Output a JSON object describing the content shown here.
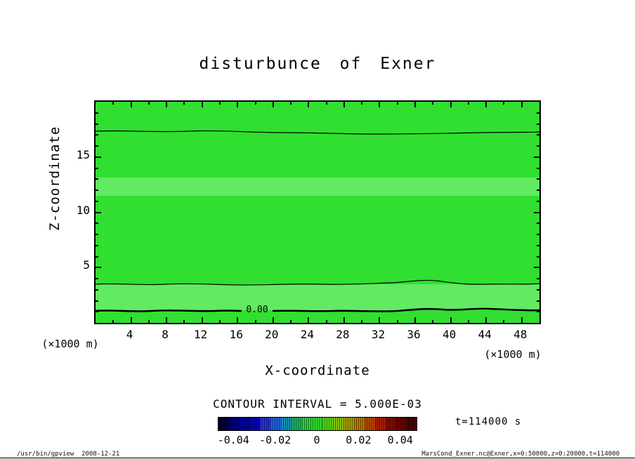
{
  "title": "disturbunce of Exner",
  "axes": {
    "x": {
      "label": "X-coordinate",
      "unit": "(×1000 m)",
      "range": [
        0,
        50
      ],
      "ticks": [
        4,
        8,
        12,
        16,
        20,
        24,
        28,
        32,
        36,
        40,
        44,
        48
      ]
    },
    "y": {
      "label": "Z-coordinate",
      "unit": "(×1000 m)",
      "range": [
        0,
        20
      ],
      "ticks": [
        5,
        10,
        15
      ]
    }
  },
  "contour": {
    "interval_text": "CONTOUR INTERVAL = 5.000E-03",
    "zero_label": "0.00"
  },
  "colorbar": {
    "min": -0.0475,
    "max": 0.0475,
    "tick_values": [
      -0.04,
      -0.02,
      0,
      0.02,
      0.04
    ],
    "tick_labels": [
      "-0.04",
      "-0.02",
      "0",
      "0.02",
      "0.04"
    ],
    "colors": [
      "#000038",
      "#000070",
      "#0000A8",
      "#0000E0",
      "#2030F0",
      "#2060E0",
      "#1890B0",
      "#18B860",
      "#28D838",
      "#30E030",
      "#58D818",
      "#88C008",
      "#A8A000",
      "#B87800",
      "#B84800",
      "#A82000",
      "#900800",
      "#700000",
      "#500000"
    ]
  },
  "field_colors": {
    "main_fill": "#30DF30",
    "light_band": "#62EA62"
  },
  "annotations": {
    "time": "t=114000 s"
  },
  "footer": {
    "left": "/usr/bin/gpview  2008-12-21",
    "right": "MarsCond_Exner.nc@Exner,x=0:50000,z=0:20000,t=114000"
  },
  "chart_data": {
    "type": "heatmap",
    "subtype": "filled-contour",
    "title": "disturbunce of Exner",
    "xlabel": "X-coordinate (×1000 m)",
    "ylabel": "Z-coordinate (×1000 m)",
    "xlim": [
      0,
      50
    ],
    "ylim": [
      0,
      20
    ],
    "x_ticks": [
      4,
      8,
      12,
      16,
      20,
      24,
      28,
      32,
      36,
      40,
      44,
      48
    ],
    "y_ticks": [
      5,
      10,
      15
    ],
    "contour_interval": 0.005,
    "time_annotation": "t=114000 s",
    "field_description": "Nearly horizontally uniform Exner-function disturbance; field is slightly positive (between 0 and +0.01) over almost the whole domain, shown as bright green fill with slightly lighter green bands near z≈12–13 and z≈1–3.6 (×1000 m).",
    "contour_lines": [
      {
        "value": 0.0,
        "label": "0.00",
        "style": "thick",
        "approx_z_km": 1.2,
        "extent": "spans full x-range, gently wavy"
      },
      {
        "value": 0.005,
        "style": "thin",
        "approx_z_km": 3.6,
        "extent": "spans full x-range, gently wavy"
      },
      {
        "value": 0.005,
        "style": "thin",
        "approx_z_km": 17.3,
        "extent": "spans full x-range, gently wavy"
      }
    ],
    "colorbar": {
      "min": -0.0475,
      "max": 0.0475,
      "tick_values": [
        -0.04,
        -0.02,
        0,
        0.02,
        0.04
      ],
      "n_cells": 19,
      "palette": "dark navy → blue → teal → green (center 0) → olive → red → dark maroon"
    },
    "legend_position": "bottom colorbar",
    "grid": false
  }
}
